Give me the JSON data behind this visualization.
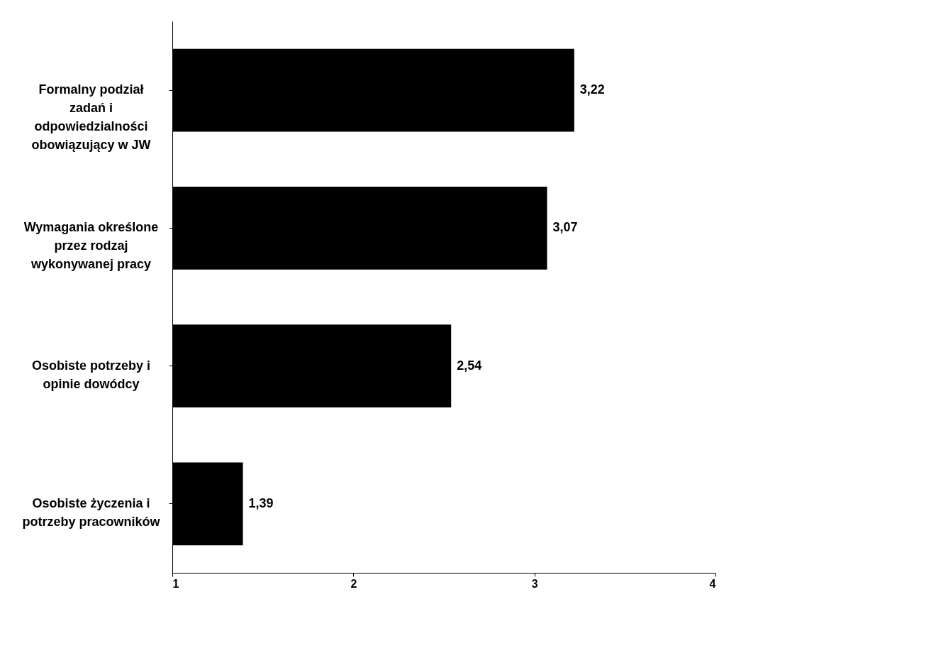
{
  "chart_data": {
    "type": "bar",
    "orientation": "horizontal",
    "categories": [
      "Formalny podział zadań i odpowiedzialności obowiązujący w JW",
      "Wymagania określone przez rodzaj wykonywanej pracy",
      "Osobiste potrzeby i opinie dowódcy",
      "Osobiste życzenia i potrzeby pracowników"
    ],
    "values": [
      3.22,
      3.07,
      2.54,
      1.39
    ],
    "value_labels": [
      "3,22",
      "3,07",
      "2,54",
      "1,39"
    ],
    "color": "#000000",
    "xlim": [
      1,
      4
    ],
    "xticks": [
      1,
      2,
      3,
      4
    ],
    "grid": false
  }
}
